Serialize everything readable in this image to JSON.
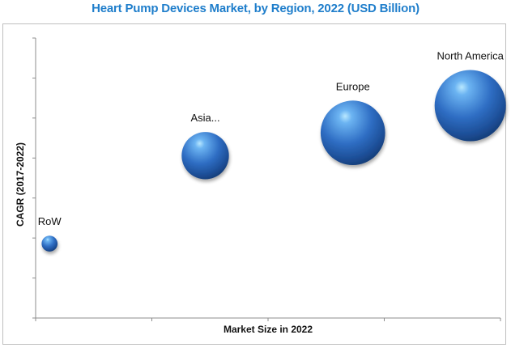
{
  "chart_data": {
    "type": "bubble",
    "title": "Heart Pump Devices Market, by Region, 2022 (USD Billion)",
    "xlabel": "Market Size in 2022",
    "ylabel": "CAGR (2017-2022)",
    "xlim": [
      0,
      4
    ],
    "ylim": [
      0,
      7
    ],
    "x_ticks": 4,
    "y_ticks": 7,
    "grid": false,
    "tick_labels": false,
    "bubble_color": "#3f7fd6",
    "points": [
      {
        "label": "RoW",
        "x": 0.12,
        "y": 1.86,
        "size": 0.05
      },
      {
        "label": "Asia...",
        "x": 1.46,
        "y": 4.06,
        "size": 0.44
      },
      {
        "label": "Europe",
        "x": 2.73,
        "y": 4.63,
        "size": 0.82
      },
      {
        "label": "North America",
        "x": 3.74,
        "y": 5.31,
        "size": 1.0
      }
    ]
  }
}
